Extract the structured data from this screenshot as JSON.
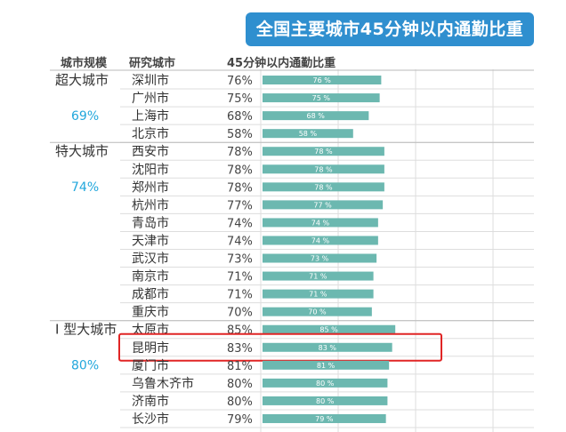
{
  "title": "全国主要城市45分钟以内通勤比重",
  "headers": {
    "scale": "城市规模",
    "city": "研究城市",
    "share": "45分钟以内通勤比重"
  },
  "colors": {
    "title_bg": "#2f8fcf",
    "bar": "#6cb8b0",
    "group_percent": "#22a7dc",
    "highlight_border": "#e02525"
  },
  "chart_data": {
    "type": "bar",
    "orientation": "horizontal",
    "title": "全国主要城市45分钟以内通勤比重",
    "unit": "%",
    "groups": [
      {
        "name": "超大城市",
        "percent": "69%"
      },
      {
        "name": "特大城市",
        "percent": "74%"
      },
      {
        "name": "I 型大城市",
        "percent": "80%"
      }
    ],
    "rows": [
      {
        "group": 0,
        "city": "深圳市",
        "value": 76
      },
      {
        "group": 0,
        "city": "广州市",
        "value": 75
      },
      {
        "group": 0,
        "city": "上海市",
        "value": 68
      },
      {
        "group": 0,
        "city": "北京市",
        "value": 58
      },
      {
        "group": 1,
        "city": "西安市",
        "value": 78
      },
      {
        "group": 1,
        "city": "沈阳市",
        "value": 78
      },
      {
        "group": 1,
        "city": "郑州市",
        "value": 78
      },
      {
        "group": 1,
        "city": "杭州市",
        "value": 77
      },
      {
        "group": 1,
        "city": "青岛市",
        "value": 74
      },
      {
        "group": 1,
        "city": "天津市",
        "value": 74
      },
      {
        "group": 1,
        "city": "武汉市",
        "value": 73
      },
      {
        "group": 1,
        "city": "南京市",
        "value": 71
      },
      {
        "group": 1,
        "city": "成都市",
        "value": 71
      },
      {
        "group": 1,
        "city": "重庆市",
        "value": 70
      },
      {
        "group": 2,
        "city": "太原市",
        "value": 85
      },
      {
        "group": 2,
        "city": "昆明市",
        "value": 83,
        "highlight": true
      },
      {
        "group": 2,
        "city": "厦门市",
        "value": 81
      },
      {
        "group": 2,
        "city": "乌鲁木齐市",
        "value": 80
      },
      {
        "group": 2,
        "city": "济南市",
        "value": 80
      },
      {
        "group": 2,
        "city": "长沙市",
        "value": 79
      }
    ]
  }
}
